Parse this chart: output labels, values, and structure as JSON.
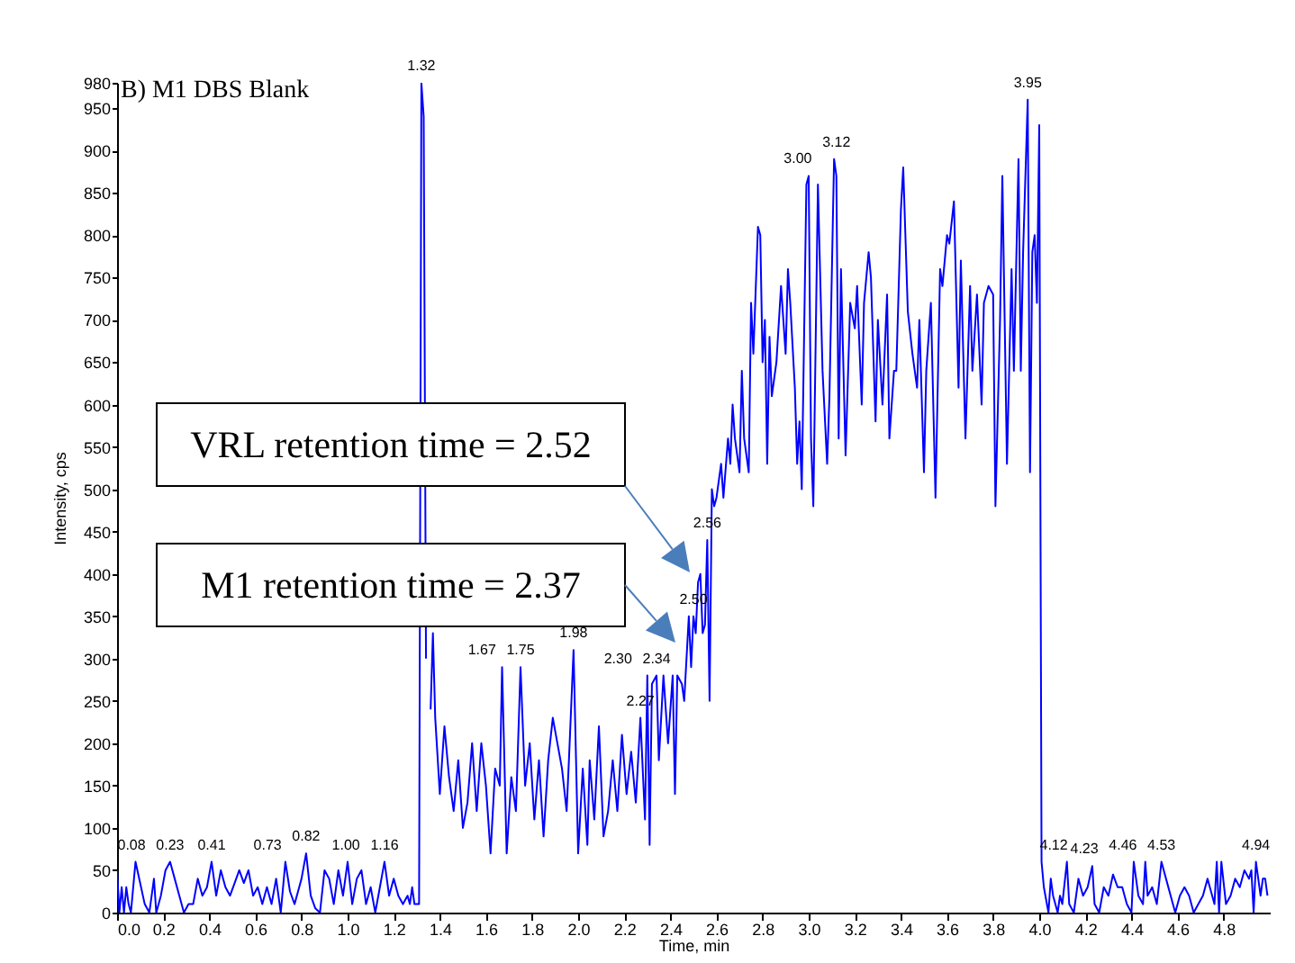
{
  "chart_data": {
    "type": "line",
    "title": "B) M1 DBS Blank",
    "xlabel": "Time, min",
    "ylabel": "Intensity, cps",
    "xlim": [
      0,
      5
    ],
    "ylim": [
      0,
      980
    ],
    "xticks": [
      {
        "value": 0,
        "label": "0.0"
      },
      0.2,
      0.4,
      0.6,
      0.8,
      {
        "value": 1,
        "label": "1.0"
      },
      1.2,
      1.4,
      1.6,
      1.8,
      {
        "value": 2,
        "label": "2.0"
      },
      2.2,
      2.4,
      2.6,
      2.8,
      {
        "value": 3,
        "label": "3.0"
      },
      3.2,
      3.4,
      3.6,
      3.8,
      {
        "value": 4,
        "label": "4.0"
      },
      4.2,
      4.4,
      4.6,
      4.8
    ],
    "yticks": [
      0,
      50,
      100,
      150,
      200,
      250,
      300,
      350,
      400,
      450,
      500,
      550,
      600,
      650,
      700,
      750,
      800,
      850,
      900,
      950,
      980
    ],
    "grid": false,
    "series": [
      {
        "color": "#0000ff",
        "x": [
          0,
          0.01,
          0.02,
          0.03,
          0.04,
          0.05,
          0.06,
          0.08,
          0.1,
          0.12,
          0.14,
          0.16,
          0.17,
          0.19,
          0.21,
          0.23,
          0.25,
          0.27,
          0.29,
          0.31,
          0.33,
          0.35,
          0.37,
          0.39,
          0.41,
          0.43,
          0.45,
          0.47,
          0.49,
          0.51,
          0.53,
          0.55,
          0.57,
          0.59,
          0.61,
          0.63,
          0.65,
          0.67,
          0.69,
          0.71,
          0.73,
          0.75,
          0.77,
          0.79,
          0.8,
          0.82,
          0.84,
          0.86,
          0.88,
          0.9,
          0.92,
          0.94,
          0.96,
          0.98,
          1,
          1.02,
          1.04,
          1.06,
          1.08,
          1.1,
          1.12,
          1.14,
          1.16,
          1.18,
          1.2,
          1.22,
          1.24,
          1.26,
          1.27,
          1.28,
          1.29,
          1.31,
          1.32,
          1.33,
          1.34,
          1.35,
          1.36,
          1.37,
          1.38,
          1.4,
          1.42,
          1.44,
          1.46,
          1.48,
          1.5,
          1.52,
          1.54,
          1.56,
          1.58,
          1.6,
          1.62,
          1.64,
          1.66,
          1.67,
          1.69,
          1.71,
          1.73,
          1.75,
          1.77,
          1.79,
          1.81,
          1.83,
          1.85,
          1.87,
          1.89,
          1.91,
          1.93,
          1.95,
          1.96,
          1.98,
          2,
          2.02,
          2.04,
          2.05,
          2.07,
          2.09,
          2.11,
          2.13,
          2.15,
          2.17,
          2.19,
          2.21,
          2.23,
          2.25,
          2.27,
          2.29,
          2.3,
          2.31,
          2.32,
          2.34,
          2.35,
          2.37,
          2.39,
          2.41,
          2.42,
          2.43,
          2.45,
          2.46,
          2.48,
          2.49,
          2.5,
          2.51,
          2.52,
          2.53,
          2.54,
          2.55,
          2.56,
          2.57,
          2.58,
          2.59,
          2.6,
          2.62,
          2.63,
          2.65,
          2.66,
          2.67,
          2.68,
          2.7,
          2.71,
          2.72,
          2.74,
          2.75,
          2.76,
          2.78,
          2.79,
          2.8,
          2.81,
          2.82,
          2.83,
          2.84,
          2.86,
          2.88,
          2.9,
          2.91,
          2.92,
          2.94,
          2.95,
          2.96,
          2.97,
          2.99,
          3,
          3.01,
          3.02,
          3.04,
          3.06,
          3.08,
          3.09,
          3.11,
          3.12,
          3.13,
          3.14,
          3.16,
          3.18,
          3.2,
          3.21,
          3.23,
          3.24,
          3.26,
          3.27,
          3.29,
          3.3,
          3.32,
          3.34,
          3.35,
          3.37,
          3.38,
          3.4,
          3.41,
          3.43,
          3.45,
          3.47,
          3.48,
          3.5,
          3.51,
          3.53,
          3.55,
          3.57,
          3.58,
          3.6,
          3.61,
          3.63,
          3.65,
          3.66,
          3.68,
          3.7,
          3.71,
          3.73,
          3.75,
          3.76,
          3.78,
          3.8,
          3.81,
          3.83,
          3.84,
          3.86,
          3.88,
          3.89,
          3.91,
          3.92,
          3.93,
          3.95,
          3.96,
          3.97,
          3.98,
          3.99,
          4,
          4.01,
          4.02,
          4.04,
          4.05,
          4.06,
          4.08,
          4.09,
          4.1,
          4.12,
          4.13,
          4.15,
          4.17,
          4.19,
          4.21,
          4.23,
          4.24,
          4.26,
          4.28,
          4.3,
          4.32,
          4.34,
          4.36,
          4.38,
          4.4,
          4.41,
          4.43,
          4.45,
          4.46,
          4.47,
          4.49,
          4.51,
          4.53,
          4.55,
          4.57,
          4.59,
          4.61,
          4.63,
          4.65,
          4.67,
          4.69,
          4.71,
          4.73,
          4.74,
          4.76,
          4.77,
          4.78,
          4.79,
          4.81,
          4.83,
          4.85,
          4.87,
          4.89,
          4.91,
          4.92,
          4.93,
          4.94,
          4.96,
          4.97,
          4.98,
          4.99
        ],
        "values": [
          50,
          0,
          30,
          0,
          30,
          10,
          0,
          60,
          35,
          10,
          0,
          40,
          0,
          20,
          50,
          60,
          40,
          20,
          0,
          10,
          10,
          40,
          20,
          30,
          60,
          20,
          50,
          30,
          20,
          35,
          50,
          35,
          50,
          20,
          30,
          10,
          30,
          10,
          40,
          0,
          60,
          25,
          10,
          30,
          40,
          70,
          20,
          5,
          0,
          50,
          40,
          10,
          50,
          20,
          60,
          10,
          40,
          50,
          10,
          30,
          0,
          30,
          60,
          20,
          40,
          20,
          10,
          20,
          10,
          30,
          10,
          10,
          980,
          940,
          300,
          null,
          240,
          330,
          230,
          140,
          220,
          160,
          120,
          180,
          100,
          130,
          200,
          120,
          200,
          150,
          70,
          170,
          150,
          290,
          70,
          160,
          120,
          290,
          150,
          200,
          110,
          180,
          90,
          180,
          230,
          200,
          170,
          120,
          180,
          310,
          70,
          170,
          80,
          180,
          110,
          220,
          90,
          120,
          180,
          120,
          210,
          140,
          190,
          130,
          230,
          110,
          280,
          80,
          270,
          280,
          180,
          280,
          200,
          280,
          140,
          280,
          270,
          250,
          350,
          290,
          350,
          330,
          390,
          400,
          330,
          340,
          440,
          250,
          500,
          480,
          490,
          530,
          490,
          560,
          530,
          600,
          560,
          520,
          640,
          560,
          520,
          720,
          660,
          810,
          800,
          650,
          700,
          530,
          680,
          610,
          650,
          740,
          660,
          760,
          720,
          620,
          530,
          580,
          500,
          860,
          870,
          560,
          480,
          860,
          640,
          530,
          610,
          890,
          870,
          560,
          760,
          540,
          720,
          690,
          740,
          600,
          720,
          780,
          750,
          580,
          700,
          600,
          730,
          560,
          640,
          640,
          830,
          880,
          710,
          660,
          620,
          700,
          520,
          640,
          720,
          490,
          760,
          740,
          800,
          790,
          840,
          620,
          770,
          560,
          740,
          640,
          730,
          600,
          720,
          740,
          730,
          480,
          700,
          870,
          530,
          760,
          640,
          890,
          640,
          780,
          960,
          520,
          780,
          800,
          720,
          930,
          60,
          30,
          0,
          40,
          20,
          0,
          20,
          10,
          60,
          10,
          0,
          40,
          20,
          30,
          55,
          10,
          0,
          30,
          20,
          45,
          30,
          30,
          10,
          0,
          60,
          20,
          10,
          60,
          20,
          30,
          10,
          60,
          40,
          20,
          0,
          20,
          30,
          20,
          0,
          10,
          20,
          40,
          30,
          10,
          60,
          0,
          60,
          10,
          20,
          40,
          30,
          50,
          40,
          50,
          0,
          60,
          20,
          40,
          40,
          20
        ]
      }
    ],
    "annotations": [
      "VRL retention time = 2.52",
      "M1 retention time = 2.37",
      {
        "text": "0.08",
        "x": 0.08,
        "y": 60
      },
      {
        "text": "0.23",
        "x": 0.23,
        "y": 60
      },
      {
        "text": "0.41",
        "x": 0.41,
        "y": 60
      },
      {
        "text": "0.73",
        "x": 0.73,
        "y": 60
      },
      {
        "text": "0.82",
        "x": 0.82,
        "y": 70
      },
      {
        "text": "1.00",
        "x": 1.0,
        "y": 60
      },
      {
        "text": "1.16",
        "x": 1.16,
        "y": 60
      },
      {
        "text": "1.32",
        "x": 1.32,
        "y": 980
      },
      {
        "text": "1.67",
        "x": 1.67,
        "y": 290
      },
      {
        "text": "1.75",
        "x": 1.75,
        "y": 290
      },
      {
        "text": "1.98",
        "x": 1.98,
        "y": 310
      },
      {
        "text": "2.27",
        "x": 2.27,
        "y": 230
      },
      {
        "text": "2.30",
        "x": 2.3,
        "y": 280
      },
      {
        "text": "2.34",
        "x": 2.34,
        "y": 280
      },
      {
        "text": "2.50",
        "x": 2.5,
        "y": 350
      },
      {
        "text": "2.56",
        "x": 2.56,
        "y": 440
      },
      {
        "text": "3.00",
        "x": 3.0,
        "y": 870
      },
      {
        "text": "3.12",
        "x": 3.12,
        "y": 890
      },
      {
        "text": "3.95",
        "x": 3.95,
        "y": 960
      },
      {
        "text": "4.12",
        "x": 4.12,
        "y": 60
      },
      {
        "text": "4.23",
        "x": 4.23,
        "y": 55
      },
      {
        "text": "4.46",
        "x": 4.46,
        "y": 60
      },
      {
        "text": "4.53",
        "x": 4.53,
        "y": 60
      },
      {
        "text": "4.94",
        "x": 4.94,
        "y": 60
      }
    ]
  }
}
